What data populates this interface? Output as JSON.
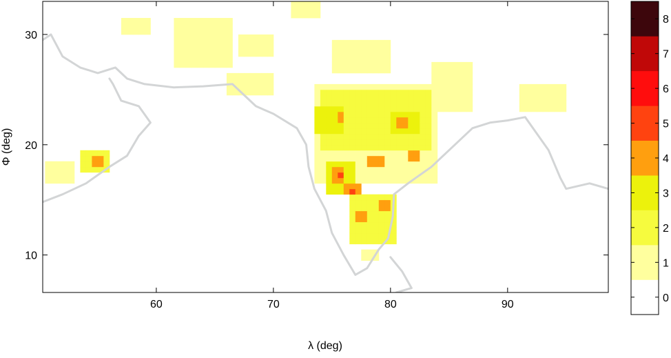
{
  "chart_data": {
    "type": "heatmap",
    "title": "",
    "xlabel": "λ (deg)",
    "ylabel": "Φ (deg)",
    "xlim": [
      50.3,
      98.6
    ],
    "ylim": [
      6.6,
      33.0
    ],
    "xticks": [
      60,
      70,
      80,
      90
    ],
    "yticks": [
      10,
      20,
      30
    ],
    "grid": false,
    "colorbar": {
      "ticks": [
        0,
        1,
        2,
        3,
        4,
        5,
        6,
        7,
        8
      ],
      "range": [
        -0.5,
        8.5
      ],
      "colors": [
        "#ffffff",
        "#ffff9e",
        "#f6fb3e",
        "#ecf20c",
        "#ff9f0f",
        "#ff4310",
        "#ff0d0d",
        "#c00808",
        "#3d060c"
      ]
    },
    "value_grid": {
      "cell_deg": 0.5,
      "background_value": 0,
      "regions": [
        {
          "lon": [
            74.5,
            77.0
          ],
          "lat": [
            15.5,
            18.5
          ],
          "value": 3
        },
        {
          "lon": [
            75.0,
            76.0
          ],
          "lat": [
            16.5,
            18.0
          ],
          "value": 4
        },
        {
          "lon": [
            75.5,
            76.0
          ],
          "lat": [
            17.0,
            17.5
          ],
          "value": 5
        },
        {
          "lon": [
            73.5,
            76.0
          ],
          "lat": [
            21.0,
            23.5
          ],
          "value": 3
        },
        {
          "lon": [
            75.5,
            76.0
          ],
          "lat": [
            22.0,
            23.0
          ],
          "value": 4
        },
        {
          "lon": [
            80.0,
            82.5
          ],
          "lat": [
            21.0,
            23.0
          ],
          "value": 3
        },
        {
          "lon": [
            80.5,
            81.5
          ],
          "lat": [
            21.5,
            22.5
          ],
          "value": 4
        },
        {
          "lon": [
            76.0,
            77.5
          ],
          "lat": [
            15.5,
            16.5
          ],
          "value": 4
        },
        {
          "lon": [
            76.5,
            77.0
          ],
          "lat": [
            15.5,
            16.0
          ],
          "value": 5
        },
        {
          "lon": [
            78.0,
            79.5
          ],
          "lat": [
            18.0,
            19.0
          ],
          "value": 4
        },
        {
          "lon": [
            81.5,
            82.5
          ],
          "lat": [
            18.5,
            19.5
          ],
          "value": 4
        },
        {
          "lon": [
            79.0,
            80.0
          ],
          "lat": [
            14.0,
            15.0
          ],
          "value": 4
        },
        {
          "lon": [
            77.0,
            78.0
          ],
          "lat": [
            13.0,
            14.0
          ],
          "value": 4
        },
        {
          "lon": [
            54.5,
            55.5
          ],
          "lat": [
            18.0,
            19.0
          ],
          "value": 4
        },
        {
          "lon": [
            53.5,
            56.0
          ],
          "lat": [
            17.5,
            19.5
          ],
          "value": 2
        },
        {
          "lon": [
            76.5,
            80.5
          ],
          "lat": [
            11.0,
            15.5
          ],
          "value": 2
        },
        {
          "lon": [
            73.5,
            84.0
          ],
          "lat": [
            16.5,
            25.5
          ],
          "value": 1
        },
        {
          "lon": [
            74.0,
            83.5
          ],
          "lat": [
            19.5,
            25.0
          ],
          "value": 2
        },
        {
          "lon": [
            83.5,
            87.0
          ],
          "lat": [
            23.0,
            27.5
          ],
          "value": 1
        },
        {
          "lon": [
            91.0,
            95.0
          ],
          "lat": [
            23.0,
            25.5
          ],
          "value": 1
        },
        {
          "lon": [
            57.0,
            59.5
          ],
          "lat": [
            30.0,
            31.5
          ],
          "value": 1
        },
        {
          "lon": [
            61.5,
            66.5
          ],
          "lat": [
            27.0,
            31.5
          ],
          "value": 1
        },
        {
          "lon": [
            67.0,
            70.0
          ],
          "lat": [
            28.0,
            30.0
          ],
          "value": 1
        },
        {
          "lon": [
            66.0,
            70.0
          ],
          "lat": [
            24.5,
            26.5
          ],
          "value": 1
        },
        {
          "lon": [
            75.0,
            80.0
          ],
          "lat": [
            26.5,
            29.5
          ],
          "value": 1
        },
        {
          "lon": [
            71.5,
            74.0
          ],
          "lat": [
            31.5,
            33.0
          ],
          "value": 1
        },
        {
          "lon": [
            50.3,
            53.0
          ],
          "lat": [
            16.5,
            18.5
          ],
          "value": 1
        },
        {
          "lon": [
            77.5,
            79.0
          ],
          "lat": [
            9.5,
            10.5
          ],
          "value": 1
        }
      ]
    },
    "coastline_lonlat": [
      [
        [
          50.3,
          29.5
        ],
        [
          51.0,
          30.0
        ],
        [
          52.0,
          28.0
        ],
        [
          53.5,
          27.0
        ],
        [
          55.0,
          26.5
        ],
        [
          56.5,
          27.0
        ],
        [
          57.5,
          26.0
        ],
        [
          59.0,
          25.5
        ],
        [
          61.5,
          25.2
        ],
        [
          64.0,
          25.3
        ],
        [
          66.5,
          25.5
        ],
        [
          67.5,
          24.5
        ],
        [
          68.5,
          23.5
        ],
        [
          70.0,
          22.8
        ],
        [
          72.0,
          21.5
        ],
        [
          72.8,
          20.0
        ],
        [
          73.0,
          18.0
        ],
        [
          73.5,
          16.0
        ],
        [
          74.5,
          14.0
        ],
        [
          75.0,
          12.0
        ],
        [
          76.0,
          10.0
        ],
        [
          77.0,
          8.2
        ],
        [
          78.0,
          8.8
        ],
        [
          79.0,
          10.5
        ],
        [
          79.8,
          11.5
        ],
        [
          80.2,
          13.5
        ],
        [
          80.3,
          15.5
        ],
        [
          81.5,
          16.5
        ],
        [
          83.5,
          18.0
        ],
        [
          85.5,
          20.0
        ],
        [
          87.0,
          21.5
        ],
        [
          88.5,
          22.0
        ],
        [
          90.0,
          22.2
        ],
        [
          91.5,
          22.5
        ],
        [
          92.5,
          21.0
        ],
        [
          93.5,
          19.5
        ],
        [
          94.5,
          17.0
        ],
        [
          95.0,
          16.0
        ],
        [
          97.0,
          16.5
        ],
        [
          98.6,
          16.0
        ]
      ],
      [
        [
          50.3,
          14.8
        ],
        [
          52.0,
          15.5
        ],
        [
          54.0,
          16.5
        ],
        [
          56.0,
          18.0
        ],
        [
          57.5,
          19.0
        ],
        [
          58.5,
          20.8
        ],
        [
          59.5,
          22.0
        ],
        [
          58.5,
          23.5
        ],
        [
          57.0,
          24.0
        ],
        [
          56.3,
          25.5
        ],
        [
          56.0,
          26.0
        ]
      ],
      [
        [
          80.0,
          9.8
        ],
        [
          81.0,
          8.5
        ],
        [
          81.8,
          7.0
        ],
        [
          80.5,
          6.6
        ]
      ]
    ]
  }
}
